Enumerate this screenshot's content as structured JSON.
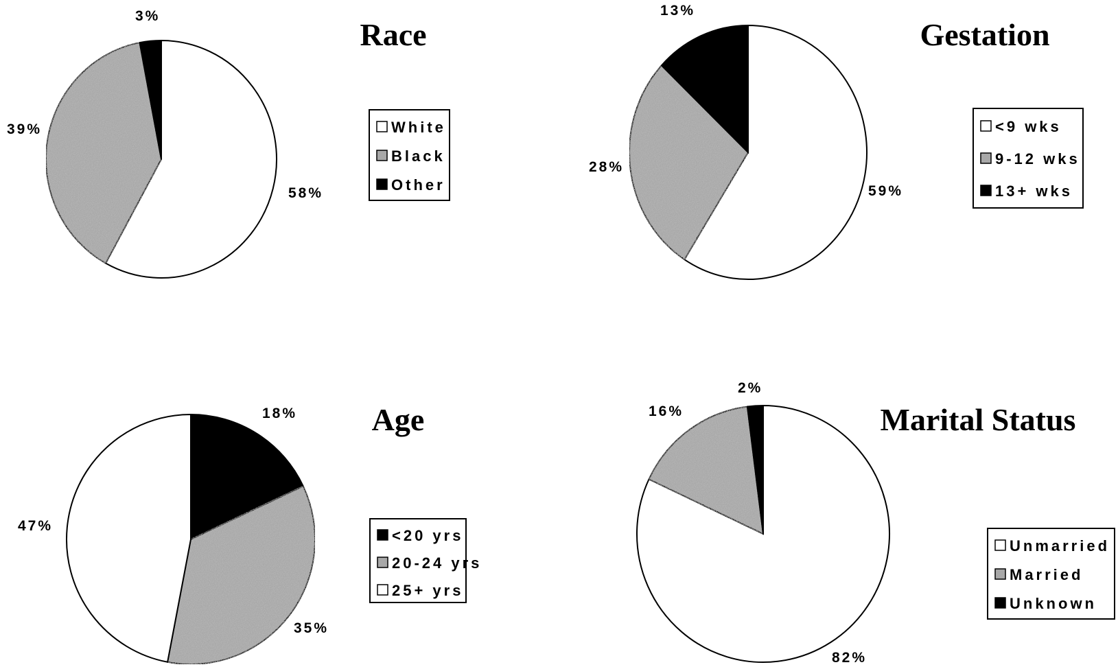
{
  "colors": {
    "white": "#ffffff",
    "gray": "#a8a8a8",
    "black": "#000000"
  },
  "chart_data": [
    {
      "type": "pie",
      "title": "Race",
      "slices": [
        {
          "label": "White",
          "value": 58,
          "data_label": "58%",
          "color": "white"
        },
        {
          "label": "Black",
          "value": 39,
          "data_label": "39%",
          "color": "gray"
        },
        {
          "label": "Other",
          "value": 3,
          "data_label": "3%",
          "color": "black"
        }
      ],
      "legend": [
        "White",
        "Black",
        "Other"
      ],
      "legend_position": "right"
    },
    {
      "type": "pie",
      "title": "Gestation",
      "slices": [
        {
          "label": "<9 wks",
          "value": 59,
          "data_label": "59%",
          "color": "white"
        },
        {
          "label": "9-12 wks",
          "value": 28,
          "data_label": "28%",
          "color": "gray"
        },
        {
          "label": "13+ wks",
          "value": 13,
          "data_label": "13%",
          "color": "black"
        }
      ],
      "legend": [
        "<9 wks",
        "9-12 wks",
        "13+ wks"
      ],
      "legend_position": "right"
    },
    {
      "type": "pie",
      "title": "Age",
      "slices": [
        {
          "label": "<20 yrs",
          "value": 18,
          "data_label": "18%",
          "color": "black"
        },
        {
          "label": "20-24 yrs",
          "value": 35,
          "data_label": "35%",
          "color": "gray"
        },
        {
          "label": "25+ yrs",
          "value": 47,
          "data_label": "47%",
          "color": "white"
        }
      ],
      "legend": [
        "<20 yrs",
        "20-24 yrs",
        "25+ yrs"
      ],
      "legend_position": "right"
    },
    {
      "type": "pie",
      "title": "Marital Status",
      "slices": [
        {
          "label": "Unmarried",
          "value": 82,
          "data_label": "82%",
          "color": "white"
        },
        {
          "label": "Married",
          "value": 16,
          "data_label": "16%",
          "color": "gray"
        },
        {
          "label": "Unknown",
          "value": 2,
          "data_label": "2%",
          "color": "black"
        }
      ],
      "legend": [
        "Unmarried",
        "Married",
        "Unknown"
      ],
      "legend_position": "right"
    }
  ]
}
